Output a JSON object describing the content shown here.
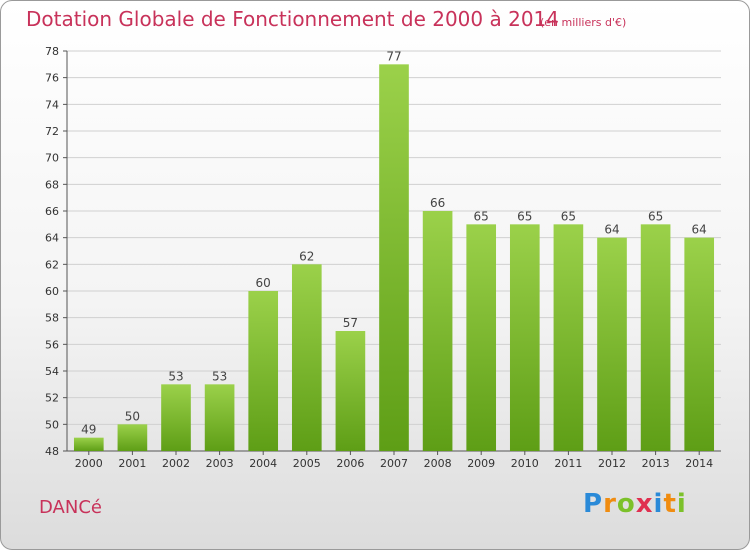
{
  "title": "Dotation Globale de Fonctionnement de 2000 à 2014",
  "subtitle": "(en milliers d'€)",
  "commune": "DANCé",
  "logo_text": "Proxiti",
  "colors": {
    "bar_top": "#9bd14a",
    "bar_bottom": "#5e9e16",
    "title": "#c8325a",
    "grid": "#d0d0d0"
  },
  "chart_data": {
    "type": "bar",
    "title": "Dotation Globale de Fonctionnement de 2000 à 2014",
    "subtitle": "(en milliers d'€)",
    "categories": [
      "2000",
      "2001",
      "2002",
      "2003",
      "2004",
      "2005",
      "2006",
      "2007",
      "2008",
      "2009",
      "2010",
      "2011",
      "2012",
      "2013",
      "2014"
    ],
    "values": [
      49,
      50,
      53,
      53,
      60,
      62,
      57,
      77,
      66,
      65,
      65,
      65,
      64,
      65,
      64
    ],
    "ylim": [
      48,
      78
    ],
    "yticks": [
      48,
      50,
      52,
      54,
      56,
      58,
      60,
      62,
      64,
      66,
      68,
      70,
      72,
      74,
      76,
      78
    ],
    "grid": true,
    "xlabel": "",
    "ylabel": ""
  }
}
